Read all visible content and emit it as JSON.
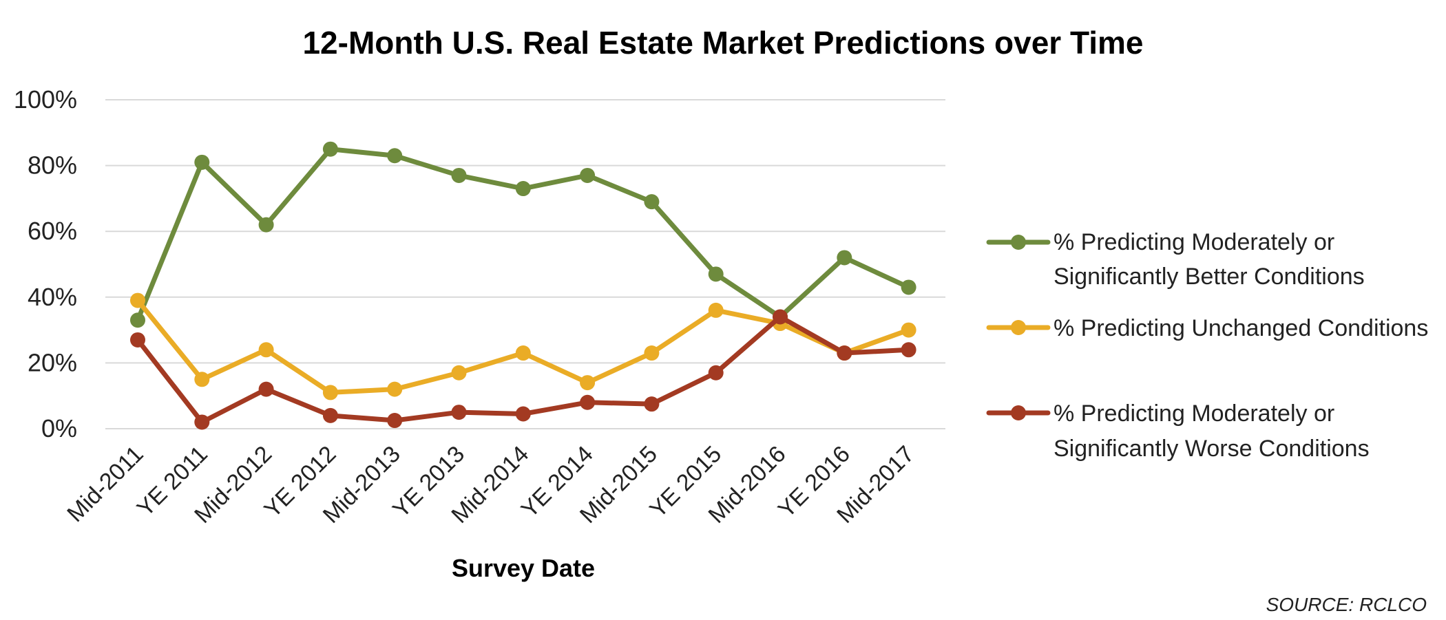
{
  "chart_data": {
    "type": "line",
    "title": "12-Month U.S. Real Estate Market Predictions over Time",
    "xlabel": "Survey Date",
    "ylabel": "",
    "ylim": [
      0,
      100
    ],
    "yticks": [
      "0%",
      "20%",
      "40%",
      "60%",
      "80%",
      "100%"
    ],
    "grid": true,
    "legend_position": "right",
    "categories": [
      "Mid-2011",
      "YE 2011",
      "Mid-2012",
      "YE 2012",
      "Mid-2013",
      "YE 2013",
      "Mid-2014",
      "YE 2014",
      "Mid-2015",
      "YE 2015",
      "Mid-2016",
      "YE 2016",
      "Mid-2017"
    ],
    "series": [
      {
        "name": "% Predicting Moderately or Significantly Better Conditions",
        "legend_lines": [
          "% Predicting Moderately or",
          "Significantly Better Conditions"
        ],
        "color": "#6e8b3d",
        "values": [
          33,
          81,
          62,
          85,
          83,
          77,
          73,
          77,
          69,
          47,
          34,
          52,
          43
        ]
      },
      {
        "name": "% Predicting Unchanged Conditions",
        "legend_lines": [
          "% Predicting Unchanged Conditions"
        ],
        "color": "#eaac26",
        "values": [
          39,
          15,
          24,
          11,
          12,
          17,
          23,
          14,
          23,
          36,
          32,
          23,
          30
        ]
      },
      {
        "name": "% Predicting Moderately or Significantly Worse Conditions",
        "legend_lines": [
          "% Predicting Moderately or",
          "Significantly Worse Conditions"
        ],
        "color": "#a33a22",
        "values": [
          27,
          2,
          12,
          4,
          2.5,
          5,
          4.5,
          8,
          7.5,
          17,
          34,
          23,
          24
        ]
      }
    ]
  },
  "source": "SOURCE:  RCLCO"
}
